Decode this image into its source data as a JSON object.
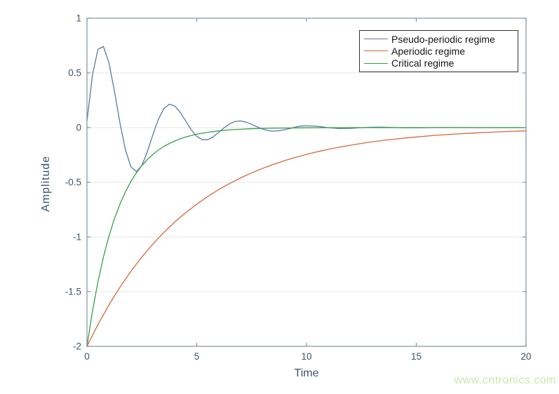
{
  "page": {
    "background": "#ffffff"
  },
  "watermark": {
    "text": "www.cntronics.com",
    "color": "#cfe5ab"
  },
  "chart_data": {
    "type": "line",
    "title": "",
    "xlabel": "Time",
    "ylabel": "Amplitude",
    "xlim": [
      0,
      20
    ],
    "ylim": [
      -2,
      1
    ],
    "xticks": [
      0,
      5,
      10,
      15,
      20
    ],
    "yticks": [
      1,
      0.5,
      0,
      -0.5,
      -1,
      -1.5,
      -2
    ],
    "grid": "horizontal-gridlines-only",
    "grid_color": "#e6e6e6",
    "axis_color": "#7f93a2",
    "tick_label_color": "#3f5469",
    "legend": {
      "position": "top-right",
      "border_color": "#333333"
    },
    "series": [
      {
        "name": "Pseudo-periodic regime",
        "color": "#5b79a1",
        "x": [
          0,
          0.25,
          0.5,
          0.75,
          1,
          1.25,
          1.5,
          1.75,
          2,
          2.25,
          2.5,
          2.75,
          3,
          3.25,
          3.5,
          3.75,
          4,
          4.25,
          4.5,
          4.75,
          5,
          5.25,
          5.5,
          5.75,
          6,
          6.25,
          6.5,
          6.75,
          7,
          7.25,
          7.5,
          7.75,
          8,
          8.25,
          8.5,
          8.75,
          9,
          9.25,
          9.5,
          9.75,
          10,
          10.5,
          11,
          11.5,
          12,
          12.5,
          13,
          13.5,
          14,
          14.5,
          15,
          15.5,
          16,
          16.5,
          17,
          17.5,
          18,
          18.5,
          19,
          19.5,
          20
        ],
        "y": [
          0.06,
          0.481,
          0.715,
          0.742,
          0.593,
          0.334,
          0.045,
          -0.202,
          -0.358,
          -0.403,
          -0.347,
          -0.221,
          -0.067,
          0.075,
          0.173,
          0.214,
          0.198,
          0.139,
          0.059,
          -0.02,
          -0.08,
          -0.111,
          -0.111,
          -0.085,
          -0.044,
          -0.001,
          0.035,
          0.056,
          0.061,
          0.05,
          0.03,
          0.007,
          -0.014,
          -0.028,
          -0.033,
          -0.029,
          -0.019,
          -0.008,
          0.005,
          0.014,
          0.017,
          0.012,
          -0.001,
          -0.009,
          -0.007,
          -0.001,
          0.004,
          0.004,
          0.001,
          -0.002,
          -0.002,
          -0.001,
          0.001,
          0.001,
          0.001,
          0,
          -0.001,
          0,
          0,
          0,
          0
        ]
      },
      {
        "name": "Aperiodic regime",
        "color": "#d2693c",
        "x": [
          0,
          0.5,
          1,
          1.5,
          2,
          2.5,
          3,
          3.5,
          4,
          4.5,
          5,
          5.5,
          6,
          6.5,
          7,
          7.5,
          8,
          8.5,
          9,
          9.5,
          10,
          10.5,
          11,
          11.5,
          12,
          12.5,
          13,
          13.5,
          14,
          14.5,
          15,
          15.5,
          16,
          16.5,
          17,
          17.5,
          18,
          18.5,
          19,
          19.5,
          20
        ],
        "y": [
          -2,
          -1.801,
          -1.621,
          -1.46,
          -1.314,
          -1.183,
          -1.065,
          -0.959,
          -0.863,
          -0.777,
          -0.7,
          -0.63,
          -0.567,
          -0.511,
          -0.46,
          -0.414,
          -0.373,
          -0.336,
          -0.302,
          -0.272,
          -0.245,
          -0.22,
          -0.199,
          -0.179,
          -0.161,
          -0.145,
          -0.13,
          -0.117,
          -0.106,
          -0.095,
          -0.086,
          -0.077,
          -0.069,
          -0.063,
          -0.056,
          -0.051,
          -0.046,
          -0.041,
          -0.037,
          -0.033,
          -0.03
        ]
      },
      {
        "name": "Critical regime",
        "color": "#35a04a",
        "x": [
          0,
          0.25,
          0.5,
          0.75,
          1,
          1.25,
          1.5,
          1.75,
          2,
          2.25,
          2.5,
          2.75,
          3,
          3.25,
          3.5,
          3.75,
          4,
          4.25,
          4.5,
          4.75,
          5,
          5.5,
          6,
          6.5,
          7,
          7.5,
          8,
          8.5,
          9,
          9.5,
          10,
          11,
          12,
          13,
          14,
          15,
          16,
          17,
          18,
          19,
          20
        ],
        "y": [
          -2,
          -1.679,
          -1.409,
          -1.183,
          -0.993,
          -0.834,
          -0.7,
          -0.588,
          -0.493,
          -0.414,
          -0.348,
          -0.292,
          -0.245,
          -0.206,
          -0.173,
          -0.145,
          -0.122,
          -0.102,
          -0.086,
          -0.072,
          -0.06,
          -0.043,
          -0.03,
          -0.021,
          -0.015,
          -0.01,
          -0.007,
          -0.005,
          -0.004,
          -0.003,
          -0.002,
          -0.001,
          0,
          0,
          0,
          0,
          0,
          0,
          0,
          0,
          0
        ]
      }
    ]
  }
}
